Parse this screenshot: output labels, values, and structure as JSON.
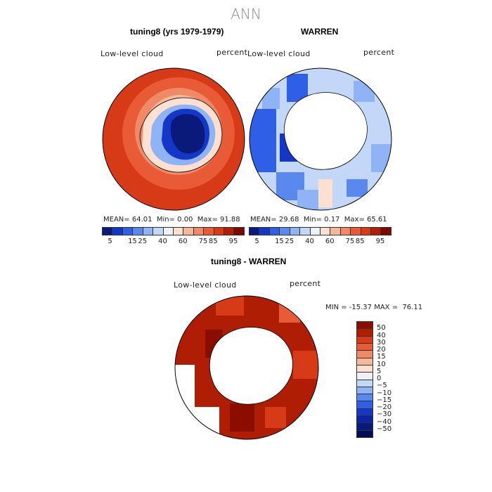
{
  "figure": {
    "title": "ANN",
    "panel1": {
      "title": "tuning8 (yrs 1979-1979)",
      "variable": "Low-level cloud",
      "units": "percent",
      "stats": {
        "mean_label": "MEAN=",
        "mean": "64.01",
        "min_label": "Min=",
        "min": "0.00",
        "max_label": "Max=",
        "max": "91.88"
      }
    },
    "panel2": {
      "title": "WARREN",
      "variable": "Low-level cloud",
      "units": "percent",
      "stats": {
        "mean_label": "MEAN=",
        "mean": "29.68",
        "min_label": "Min=",
        "min": "0.17",
        "max_label": "Max=",
        "max": "65.61"
      }
    },
    "panel3": {
      "title": "tuning8 - WARREN",
      "variable": "Low-level cloud",
      "units": "percent",
      "range_text": "MIN = -15.37 MAX =  76.11"
    },
    "colorbar_abs": {
      "labels": [
        "5",
        "15",
        "25",
        "40",
        "60",
        "75",
        "85",
        "95"
      ],
      "colors": [
        "#0a1a7a",
        "#1537c8",
        "#2f5fe6",
        "#5a88ef",
        "#8fb3f4",
        "#c3d8f8",
        "#eef2f7",
        "#fde0cf",
        "#f6b89b",
        "#f08a66",
        "#e85b36",
        "#d63a17",
        "#b01e08",
        "#7a0a00"
      ]
    },
    "colorbar_diff": {
      "labels": [
        "50",
        "40",
        "30",
        "20",
        "15",
        "10",
        "5",
        "0",
        "−5",
        "−10",
        "−15",
        "−20",
        "−30",
        "−40",
        "−50"
      ],
      "colors": [
        "#8b0d00",
        "#b01d05",
        "#d63a17",
        "#e85b36",
        "#f08a66",
        "#f6b89b",
        "#fde0cf",
        "#eef2f7",
        "#c3d8f8",
        "#8fb3f4",
        "#5a88ef",
        "#2f5fe6",
        "#1537c8",
        "#0c23a6",
        "#0a1a7a",
        "#030c55"
      ]
    }
  }
}
